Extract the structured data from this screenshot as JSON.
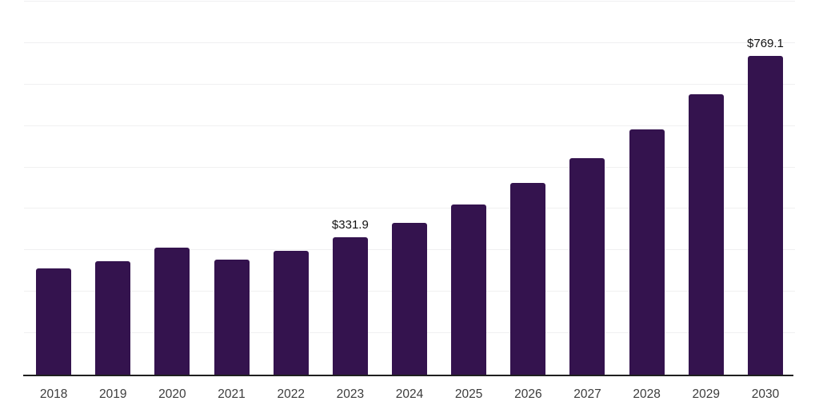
{
  "chart": {
    "background_color": "#ffffff",
    "bar_color": "#34134e",
    "axis_line_color": "#1f1f1f",
    "gridline_color": "#f0f0f1",
    "year_label_color": "#3c3c3c",
    "data_label_color": "#111111"
  },
  "chart_data": {
    "type": "bar",
    "categories": [
      "2018",
      "2019",
      "2020",
      "2021",
      "2022",
      "2023",
      "2024",
      "2025",
      "2026",
      "2027",
      "2028",
      "2029",
      "2030"
    ],
    "values": [
      256.4,
      274.2,
      305.8,
      277.5,
      298.7,
      331.9,
      366.7,
      410.4,
      461.9,
      521.6,
      591.6,
      675.8,
      769.1
    ],
    "data_labels": [
      {
        "category": "2023",
        "text": "$331.9"
      },
      {
        "category": "2030",
        "text": "$769.1"
      }
    ],
    "title": "",
    "xlabel": "",
    "ylabel": "",
    "ylim": [
      0,
      900
    ],
    "grid_step": 100,
    "grid": "horizontal-only",
    "y_tick_labels_visible": false,
    "legend_position": "none"
  }
}
